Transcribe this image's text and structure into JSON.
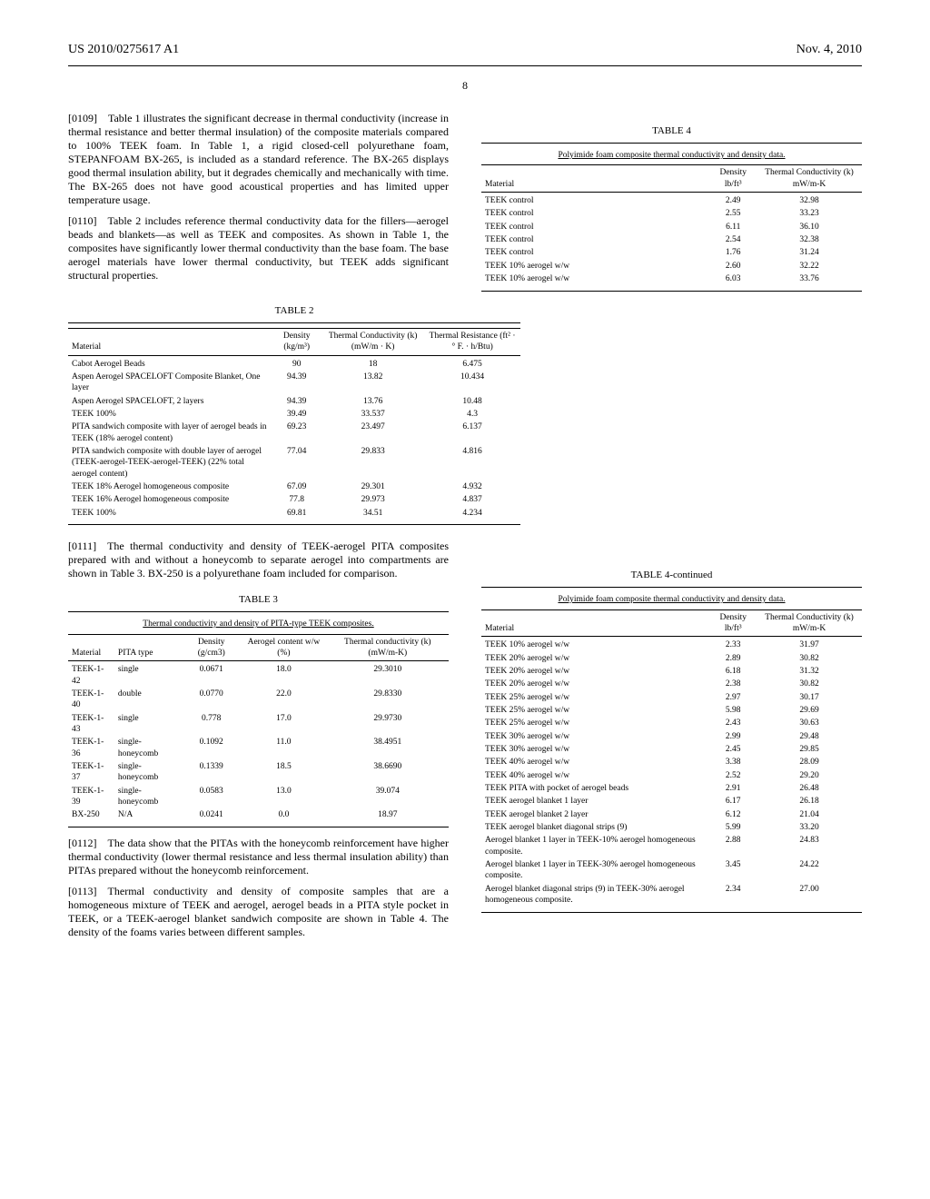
{
  "header": {
    "pub_no": "US 2010/0275617 A1",
    "date": "Nov. 4, 2010",
    "page_no": "8"
  },
  "left_col": {
    "p0109": "[0109] Table 1 illustrates the significant decrease in thermal conductivity (increase in thermal resistance and better thermal insulation) of the composite materials compared to 100% TEEK foam. In Table 1, a rigid closed-cell polyurethane foam, STEPANFOAM BX-265, is included as a standard reference. The BX-265 displays good thermal insulation ability, but it degrades chemically and mechanically with time. The BX-265 does not have good acoustical properties and has limited upper temperature usage.",
    "p0110": "[0110] Table 2 includes reference thermal conductivity data for the fillers—aerogel beads and blankets—as well as TEEK and composites. As shown in Table 1, the composites have significantly lower thermal conductivity than the base foam. The base aerogel materials have lower thermal conductivity, but TEEK adds significant structural properties.",
    "p0111": "[0111] The thermal conductivity and density of TEEK-aerogel PITA composites prepared with and without a honeycomb to separate aerogel into compartments are shown in Table 3. BX-250 is a polyurethane foam included for comparison.",
    "p0112": "[0112] The data show that the PITAs with the honeycomb reinforcement have higher thermal conductivity (lower thermal resistance and less thermal insulation ability) than PITAs prepared without the honeycomb reinforcement.",
    "p0113": "[0113] Thermal conductivity and density of composite samples that are a homogeneous mixture of TEEK and aerogel, aerogel beads in a PITA style pocket in TEEK, or a TEEK-aerogel blanket sandwich composite are shown in Table 4. The density of the foams varies between different samples."
  },
  "table2": {
    "caption": "TABLE 2",
    "headers": [
      "Material",
      "Density (kg/m³)",
      "Thermal Conductivity (k) (mW/m · K)",
      "Thermal Resistance (ft² · ° F. · h/Btu)"
    ],
    "rows": [
      [
        "Cabot Aerogel Beads",
        "90",
        "18",
        "6.475"
      ],
      [
        "Aspen Aerogel SPACELOFT Composite Blanket, One layer",
        "94.39",
        "13.82",
        "10.434"
      ],
      [
        "Aspen Aerogel SPACELOFT, 2 layers",
        "94.39",
        "13.76",
        "10.48"
      ],
      [
        "TEEK 100%",
        "39.49",
        "33.537",
        "4.3"
      ],
      [
        "PITA sandwich composite with layer of aerogel beads in TEEK (18% aerogel content)",
        "69.23",
        "23.497",
        "6.137"
      ],
      [
        "PITA sandwich composite with double layer of aerogel (TEEK-aerogel-TEEK-aerogel-TEEK) (22% total aerogel content)",
        "77.04",
        "29.833",
        "4.816"
      ],
      [
        "TEEK 18% Aerogel homogeneous composite",
        "67.09",
        "29.301",
        "4.932"
      ],
      [
        "TEEK 16% Aerogel homogeneous composite",
        "77.8",
        "29.973",
        "4.837"
      ],
      [
        "TEEK 100%",
        "69.81",
        "34.51",
        "4.234"
      ]
    ]
  },
  "table3": {
    "caption": "TABLE 3",
    "subcaption": "Thermal conductivity and density of PITA-type TEEK composites.",
    "headers": [
      "Material",
      "PITA type",
      "Density (g/cm3)",
      "Aerogel content w/w (%)",
      "Thermal conductivity (k) (mW/m-K)"
    ],
    "rows": [
      [
        "TEEK-1-42",
        "single",
        "0.0671",
        "18.0",
        "29.3010"
      ],
      [
        "TEEK-1-40",
        "double",
        "0.0770",
        "22.0",
        "29.8330"
      ],
      [
        "TEEK-1-43",
        "single",
        "0.778",
        "17.0",
        "29.9730"
      ],
      [
        "TEEK-1-36",
        "single-honeycomb",
        "0.1092",
        "11.0",
        "38.4951"
      ],
      [
        "TEEK-1-37",
        "single-honeycomb",
        "0.1339",
        "18.5",
        "38.6690"
      ],
      [
        "TEEK-1-39",
        "single-honeycomb",
        "0.0583",
        "13.0",
        "39.074"
      ],
      [
        "BX-250",
        "N/A",
        "0.0241",
        "0.0",
        "18.97"
      ]
    ]
  },
  "table4a": {
    "caption": "TABLE 4",
    "subcaption": "Polyimide foam composite thermal conductivity and density data.",
    "headers": [
      "Material",
      "Density lb/ft³",
      "Thermal Conductivity (k) mW/m-K"
    ],
    "rows": [
      [
        "TEEK control",
        "2.49",
        "32.98"
      ],
      [
        "TEEK control",
        "2.55",
        "33.23"
      ],
      [
        "TEEK control",
        "6.11",
        "36.10"
      ],
      [
        "TEEK control",
        "2.54",
        "32.38"
      ],
      [
        "TEEK control",
        "1.76",
        "31.24"
      ],
      [
        "TEEK 10% aerogel w/w",
        "2.60",
        "32.22"
      ],
      [
        "TEEK 10% aerogel w/w",
        "6.03",
        "33.76"
      ]
    ]
  },
  "table4b": {
    "caption": "TABLE 4-continued",
    "subcaption": "Polyimide foam composite thermal conductivity and density data.",
    "headers": [
      "Material",
      "Density lb/ft³",
      "Thermal Conductivity (k) mW/m-K"
    ],
    "rows": [
      [
        "TEEK 10% aerogel w/w",
        "2.33",
        "31.97"
      ],
      [
        "TEEK 20% aerogel w/w",
        "2.89",
        "30.82"
      ],
      [
        "TEEK 20% aerogel w/w",
        "6.18",
        "31.32"
      ],
      [
        "TEEK 20% aerogel w/w",
        "2.38",
        "30.82"
      ],
      [
        "TEEK 25% aerogel w/w",
        "2.97",
        "30.17"
      ],
      [
        "TEEK 25% aerogel w/w",
        "5.98",
        "29.69"
      ],
      [
        "TEEK 25% aerogel w/w",
        "2.43",
        "30.63"
      ],
      [
        "TEEK 30% aerogel w/w",
        "2.99",
        "29.48"
      ],
      [
        "TEEK 30% aerogel w/w",
        "2.45",
        "29.85"
      ],
      [
        "TEEK 40% aerogel w/w",
        "3.38",
        "28.09"
      ],
      [
        "TEEK 40% aerogel w/w",
        "2.52",
        "29.20"
      ],
      [
        "TEEK PITA with pocket of aerogel beads",
        "2.91",
        "26.48"
      ],
      [
        "TEEK aerogel blanket 1 layer",
        "6.17",
        "26.18"
      ],
      [
        "TEEK aerogel blanket 2 layer",
        "6.12",
        "21.04"
      ],
      [
        "TEEK aerogel blanket diagonal strips (9)",
        "5.99",
        "33.20"
      ],
      [
        "Aerogel blanket 1 layer in TEEK-10% aerogel homogeneous composite.",
        "2.88",
        "24.83"
      ],
      [
        "Aerogel blanket 1 layer in TEEK-30% aerogel homogeneous composite.",
        "3.45",
        "24.22"
      ],
      [
        "Aerogel blanket diagonal strips (9) in TEEK-30% aerogel homogeneous composite.",
        "2.34",
        "27.00"
      ]
    ]
  }
}
